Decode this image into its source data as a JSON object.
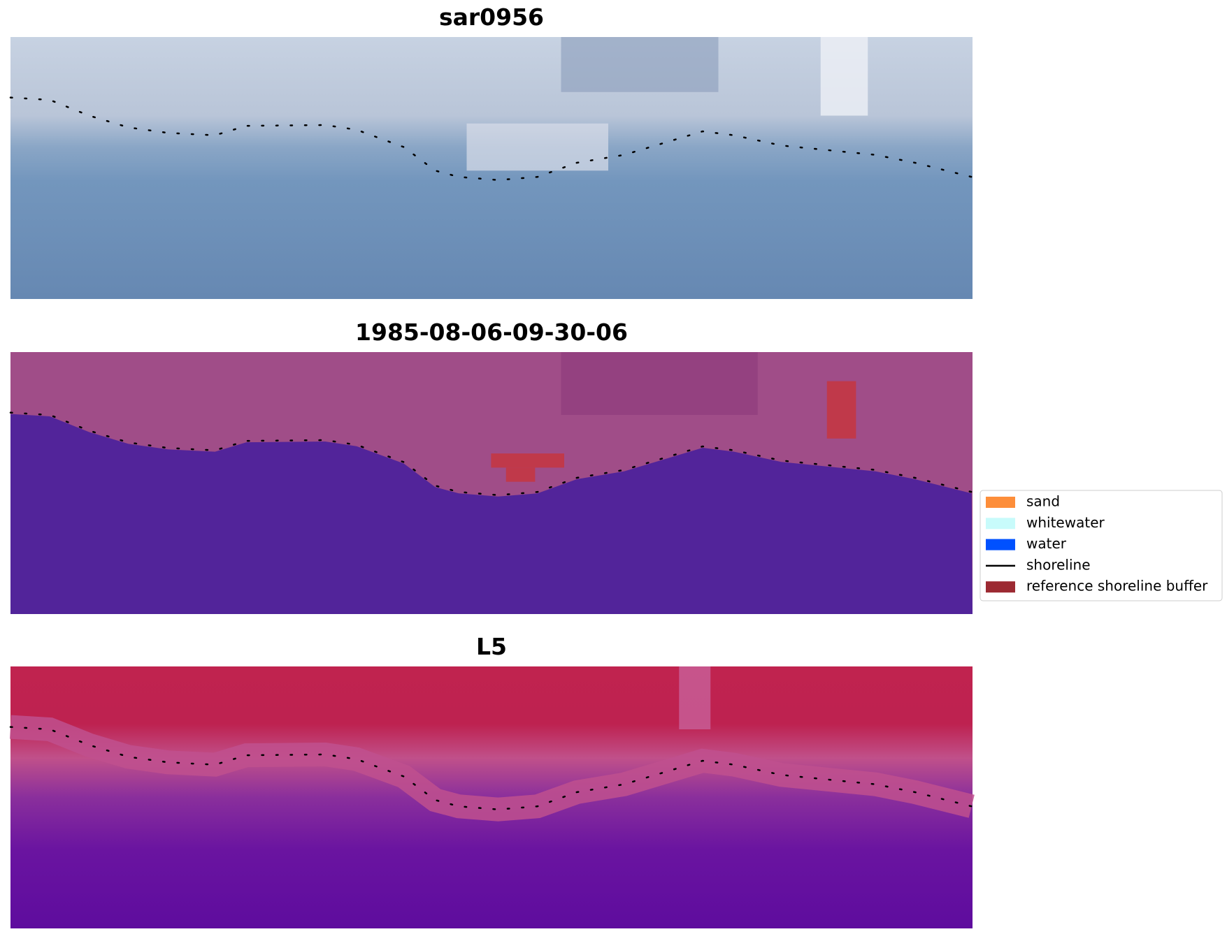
{
  "panels": [
    {
      "title": "sar0956"
    },
    {
      "title": "1985-08-06-09-30-06"
    },
    {
      "title": "L5"
    }
  ],
  "legend": [
    {
      "label": "sand",
      "color": "#fd8e3a"
    },
    {
      "label": "whitewater",
      "color": "#c8fbfb"
    },
    {
      "label": "water",
      "color": "#0051ff"
    },
    {
      "label": "shoreline",
      "color": "#000000"
    },
    {
      "label": "reference shoreline buffer",
      "color": "#9c2a32"
    }
  ]
}
